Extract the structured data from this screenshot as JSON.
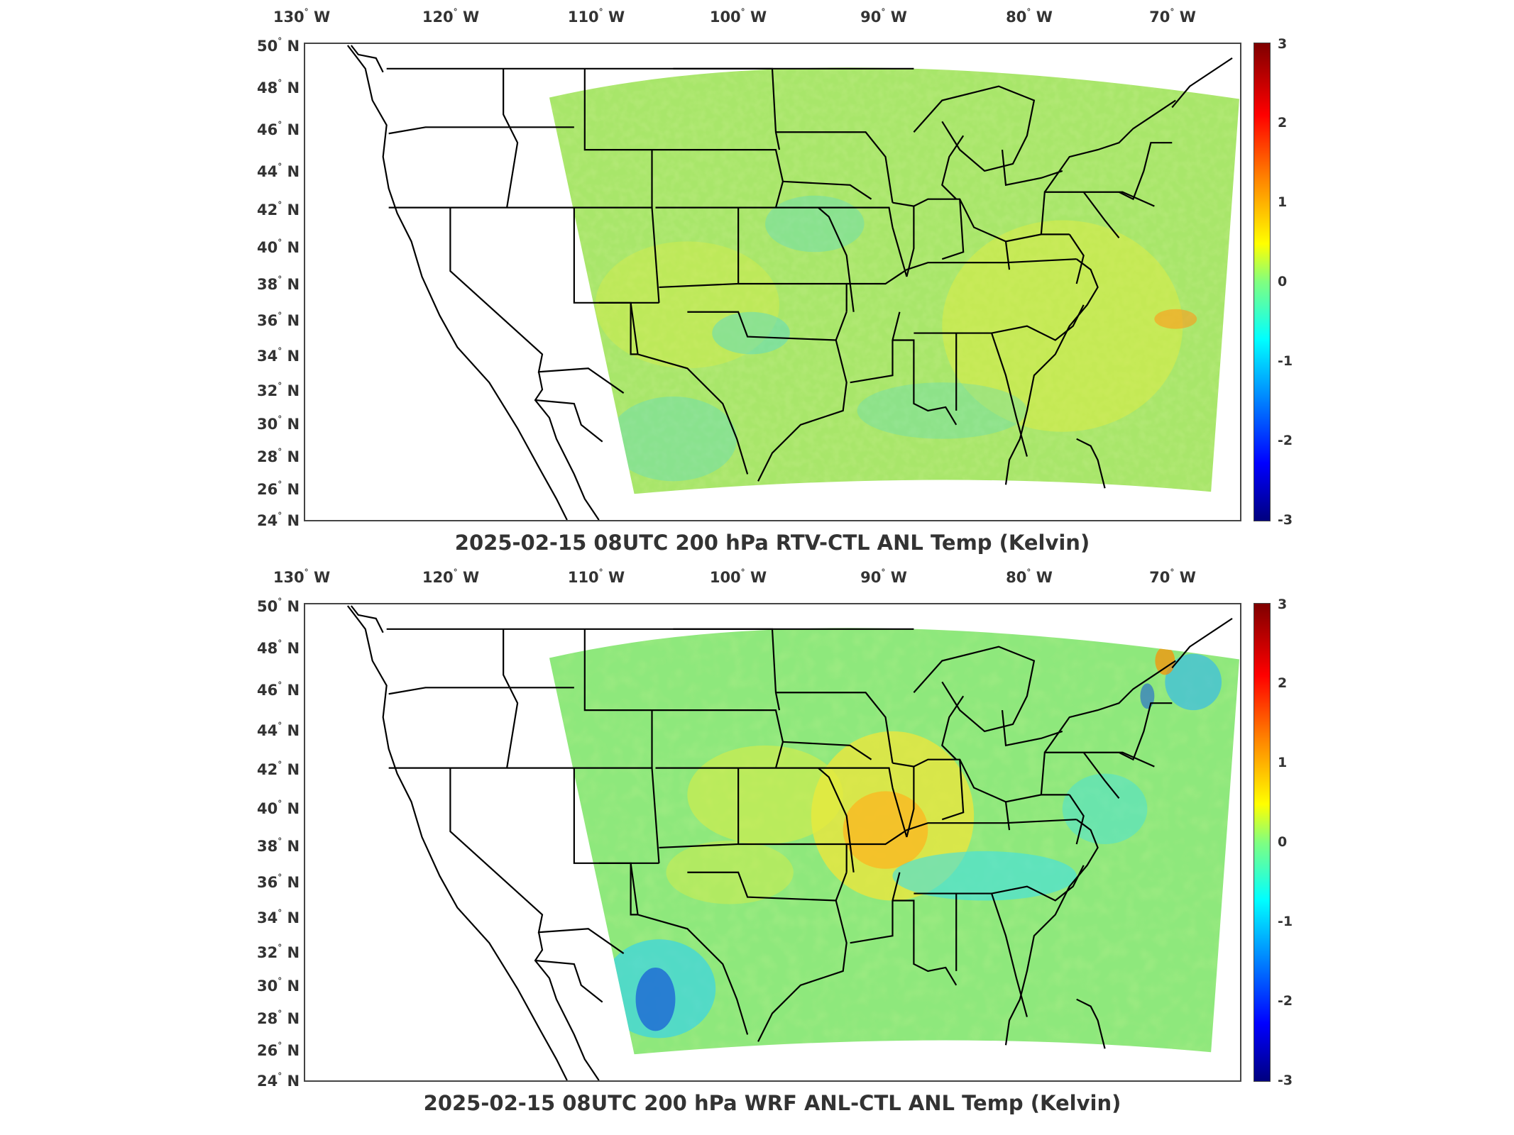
{
  "maps": [
    {
      "title": "2025-02-15 08UTC 200 hPa RTV-CTL ANL Temp (Kelvin)",
      "lon_ticks": [
        "130",
        "120",
        "110",
        "100",
        "90",
        "80",
        "70"
      ],
      "lon_hemisphere": "W",
      "lat_ticks": [
        "50",
        "48",
        "46",
        "44",
        "42",
        "40",
        "38",
        "36",
        "34",
        "32",
        "30",
        "28",
        "26",
        "24"
      ],
      "lat_hemisphere": "N",
      "colorbar_ticks": [
        "3",
        "2",
        "1",
        "0",
        "-1",
        "-2",
        "-3"
      ],
      "colorbar_range": [
        -3,
        3
      ],
      "field_character": "mostly near zero to slightly positive; green/yellow speckle"
    },
    {
      "title": "2025-02-15 08UTC 200 hPa WRF ANL-CTL ANL Temp (Kelvin)",
      "lon_ticks": [
        "130",
        "120",
        "110",
        "100",
        "90",
        "80",
        "70"
      ],
      "lon_hemisphere": "W",
      "lat_ticks": [
        "50",
        "48",
        "46",
        "44",
        "42",
        "40",
        "38",
        "36",
        "34",
        "32",
        "30",
        "28",
        "26",
        "24"
      ],
      "lat_hemisphere": "N",
      "colorbar_ticks": [
        "3",
        "2",
        "1",
        "0",
        "-1",
        "-2",
        "-3"
      ],
      "colorbar_range": [
        -3,
        3
      ],
      "field_character": "warm anomaly over central Mississippi valley; cold anomaly over west Texas and Maine"
    }
  ],
  "colors": {
    "domain_base": "#9be870",
    "warm": "#ffd700",
    "hot": "#ff8c00",
    "cool": "#3fe0e0",
    "cold": "#1a5fd6"
  }
}
